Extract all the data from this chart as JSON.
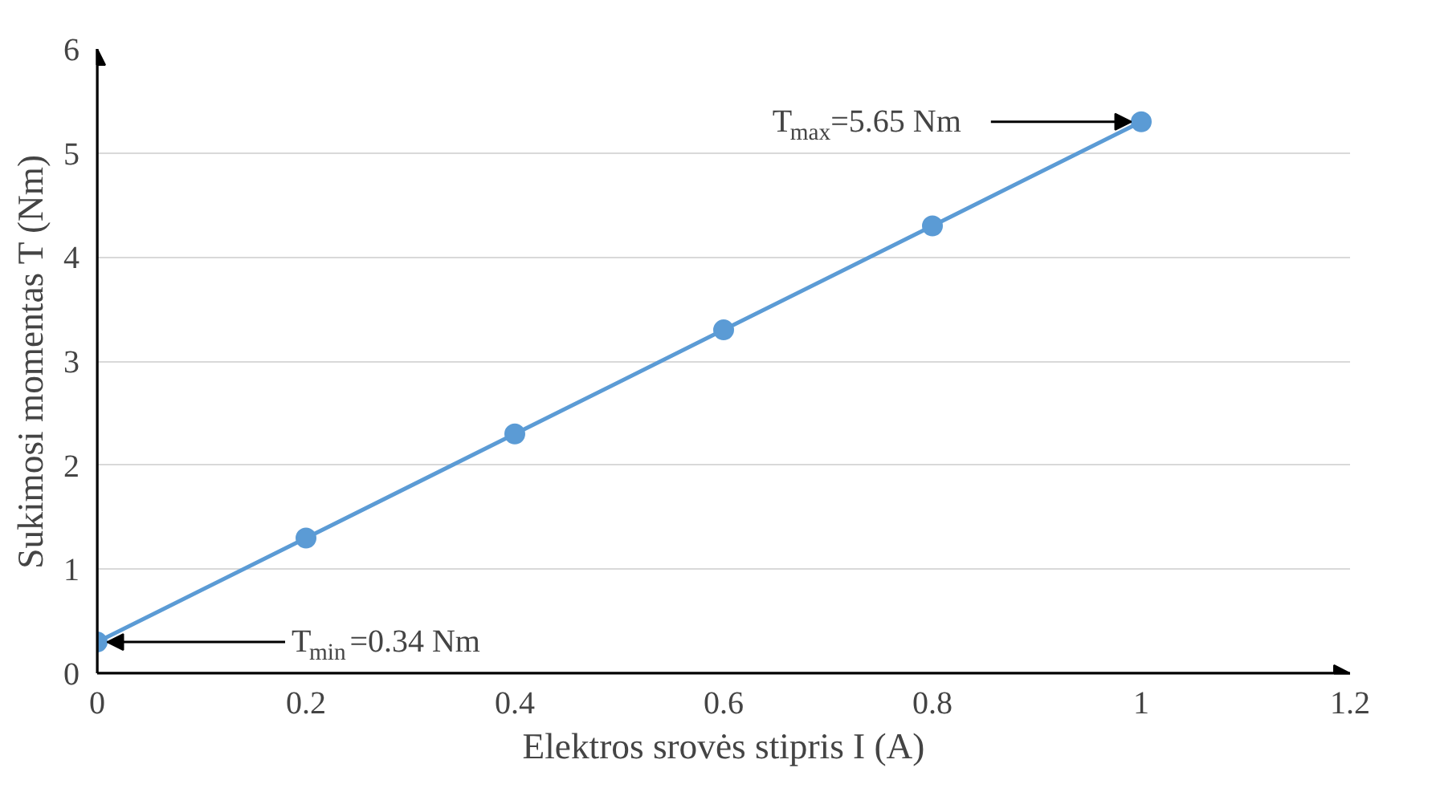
{
  "chart_data": {
    "type": "line",
    "xlabel": "Elektros srovės stipris I (A)",
    "ylabel": "Sukimosi momentas T (Nm)",
    "x": [
      0,
      0.2,
      0.4,
      0.6,
      0.8,
      1
    ],
    "series": [
      {
        "color": "#5b9bd5",
        "values": [
          0.3,
          1.3,
          2.3,
          3.3,
          4.3,
          5.3
        ]
      }
    ],
    "xlim": [
      0,
      1.2
    ],
    "xticks": [
      0,
      {
        "value": 0.2,
        "label": "0.2"
      },
      {
        "value": 0.4,
        "label": "0.4"
      },
      {
        "value": 0.6,
        "label": "0.6"
      },
      {
        "value": 0.8,
        "label": "0.8"
      },
      1,
      {
        "value": 1.2,
        "label": "1.2"
      }
    ],
    "ylim": [
      0,
      6
    ],
    "yticks": [
      0,
      1,
      2,
      3,
      4,
      5,
      6
    ],
    "grid": "y",
    "marker": "circle",
    "line_style": "solid",
    "annotations": [
      {
        "text": "T$_{min}$=0.34 Nm",
        "x": 0,
        "y": 0.3
      },
      {
        "text": "T$_{max}$=5.65 Nm",
        "x": 1,
        "y": 5.3
      }
    ]
  }
}
